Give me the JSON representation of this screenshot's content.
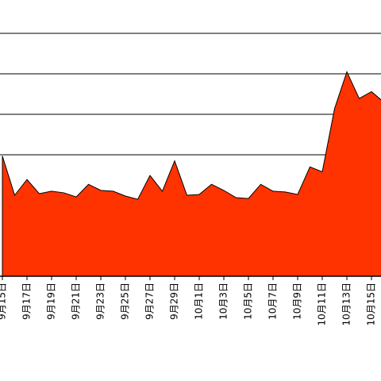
{
  "chart_data": {
    "type": "area",
    "categories": [
      "9月15日",
      null,
      "9月17日",
      null,
      "9月19日",
      null,
      "9月21日",
      null,
      "9月23日",
      null,
      "9月25日",
      null,
      "9月27日",
      null,
      "9月29日",
      null,
      "10月1日",
      null,
      "10月3日",
      null,
      "10月5日",
      null,
      "10月7日",
      null,
      "10月9日",
      null,
      "10月11日",
      null,
      "10月13日",
      null,
      "10月15日",
      null
    ],
    "series": [
      {
        "color": "#ff3300",
        "values": [
          2.97,
          2.0,
          2.39,
          2.04,
          2.1,
          2.06,
          1.96,
          2.27,
          2.12,
          2.1,
          1.98,
          1.9,
          2.49,
          2.1,
          2.85,
          2.0,
          2.02,
          2.27,
          2.12,
          1.94,
          1.92,
          2.27,
          2.1,
          2.08,
          2.02,
          2.7,
          2.58,
          4.14,
          5.05,
          4.39,
          4.56,
          4.3
        ]
      }
    ],
    "ylim": [
      0,
      6
    ],
    "yticks": [
      3,
      4,
      5,
      6
    ],
    "grid": true
  }
}
